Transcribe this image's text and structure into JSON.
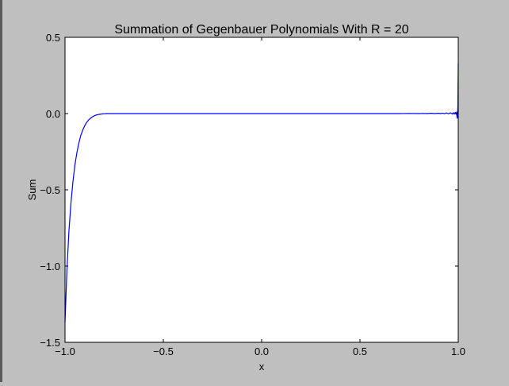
{
  "chart_data": {
    "type": "line",
    "title": "Summation of Gegenbauer Polynomials With R = 20",
    "xlabel": "x",
    "ylabel": "Sum",
    "xlim": [
      -1.0,
      1.0
    ],
    "ylim": [
      -1.5,
      0.5
    ],
    "grid": false,
    "x_ticks": [
      -1.0,
      -0.5,
      0.0,
      0.5,
      1.0
    ],
    "x_tick_labels": [
      "−1.0",
      "−0.5",
      "0.0",
      "0.5",
      "1.0"
    ],
    "y_ticks": [
      -1.5,
      -1.0,
      -0.5,
      0.0,
      0.5
    ],
    "y_tick_labels": [
      "−1.5",
      "−1.0",
      "−0.5",
      "0.0",
      "0.5"
    ],
    "series": [
      {
        "color": "#0000ff",
        "x": [
          -1.0,
          -0.99,
          -0.98,
          -0.97,
          -0.96,
          -0.95,
          -0.94,
          -0.93,
          -0.92,
          -0.91,
          -0.9,
          -0.89,
          -0.88,
          -0.87,
          -0.86,
          -0.85,
          -0.84,
          -0.83,
          -0.82,
          -0.81,
          -0.8,
          -0.79,
          -0.78,
          -0.76,
          -0.74,
          -0.7,
          -0.6,
          -0.4,
          -0.2,
          0.0,
          0.2,
          0.4,
          0.6,
          0.7,
          0.75,
          0.8,
          0.82,
          0.84,
          0.86,
          0.88,
          0.9,
          0.91,
          0.92,
          0.93,
          0.94,
          0.95,
          0.96,
          0.97,
          0.975,
          0.98,
          0.985,
          0.99,
          0.992,
          0.994,
          0.996,
          0.998,
          1.0
        ],
        "y": [
          -1.37,
          -1.02,
          -0.77,
          -0.59,
          -0.45,
          -0.34,
          -0.26,
          -0.195,
          -0.145,
          -0.108,
          -0.08,
          -0.058,
          -0.042,
          -0.03,
          -0.021,
          -0.014,
          -0.009,
          -0.006,
          -0.004,
          -0.002,
          -0.001,
          0.0,
          0.0,
          0.0,
          0.0,
          0.0,
          0.0,
          0.0,
          0.0,
          0.0,
          0.0,
          0.0,
          0.0,
          0.0,
          0.001,
          0.0,
          0.001,
          0.0,
          0.002,
          0.0,
          0.002,
          0.0,
          0.003,
          -0.001,
          0.004,
          -0.002,
          0.005,
          -0.003,
          0.006,
          -0.004,
          0.008,
          -0.005,
          0.01,
          -0.03,
          -0.02,
          0.05,
          0.33
        ]
      }
    ]
  }
}
